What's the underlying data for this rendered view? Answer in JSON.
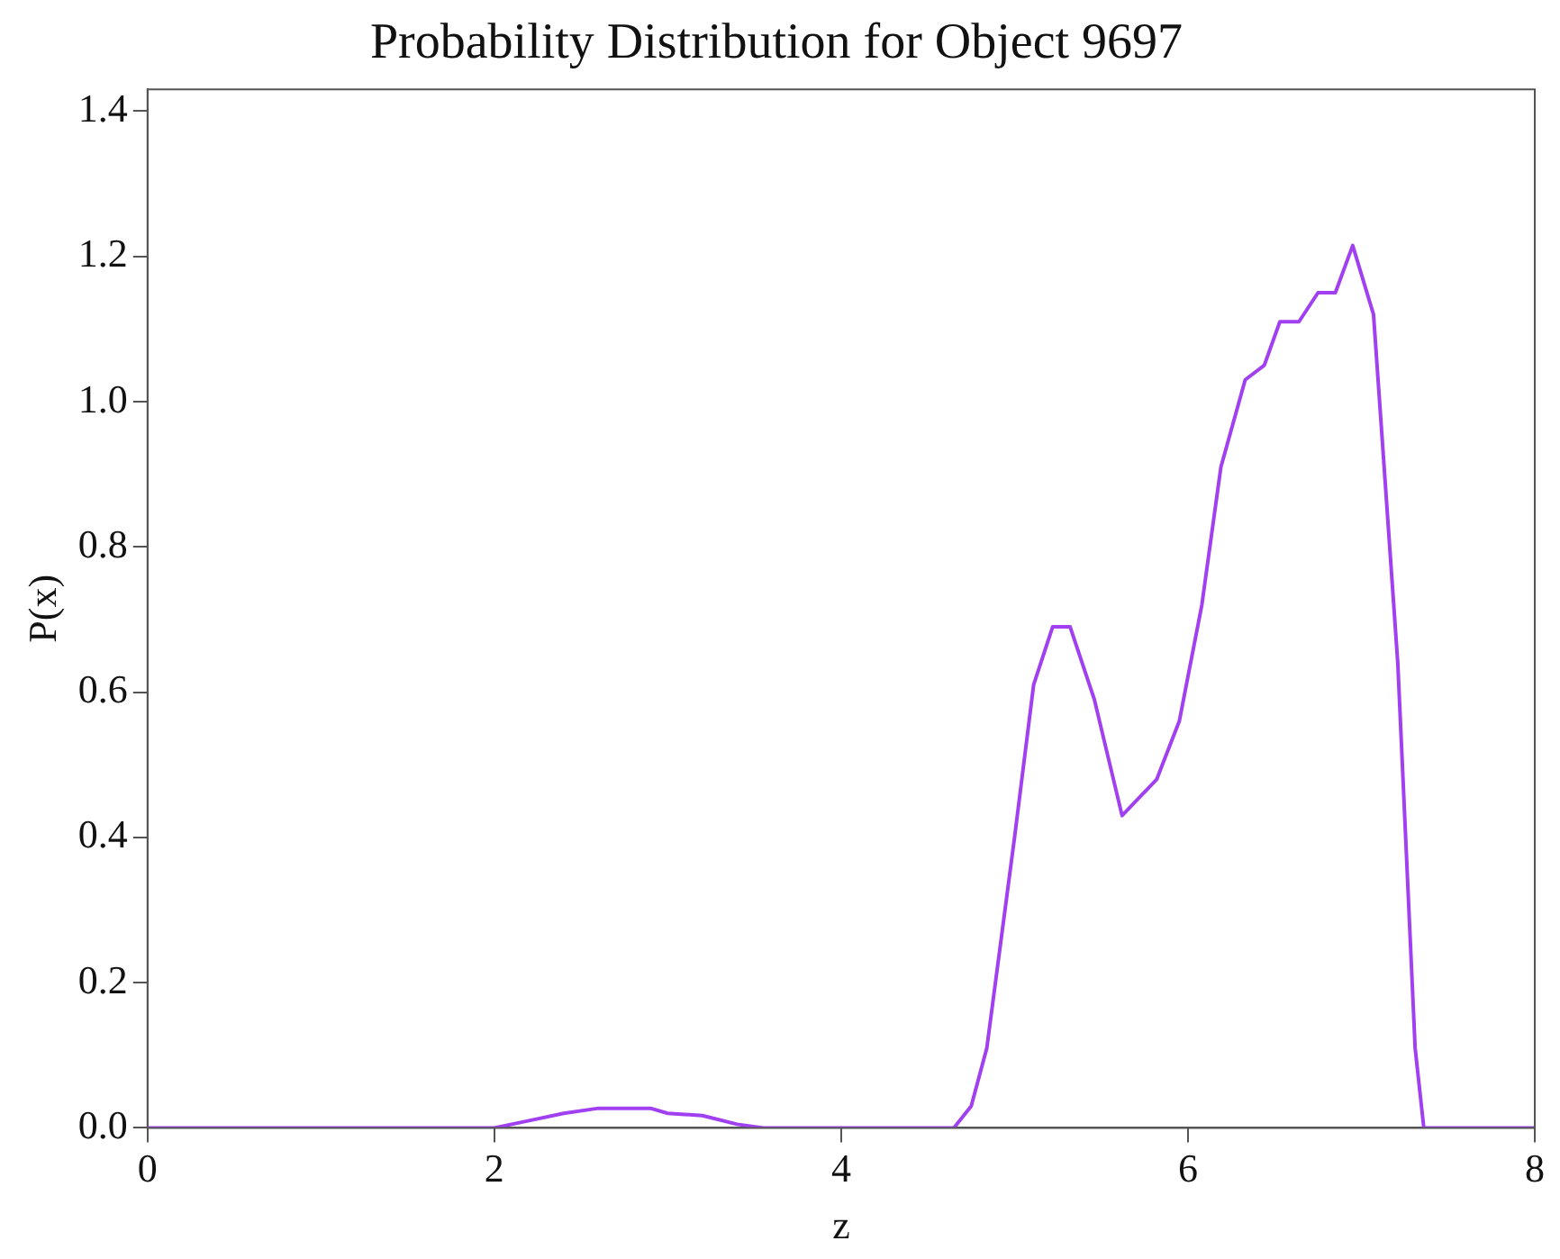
{
  "chart_data": {
    "type": "line",
    "title": "Probability Distribution for Object 9697",
    "xlabel": "z",
    "ylabel": "P(x)",
    "xlim": [
      0,
      8
    ],
    "xticks": [
      0,
      2,
      4,
      6,
      8
    ],
    "ylim": [
      0,
      1.43
    ],
    "yticks": [
      {
        "value": 0,
        "label": "0.0"
      },
      0.2,
      0.4,
      0.6,
      0.8,
      {
        "value": 1,
        "label": "1.0"
      },
      1.2,
      1.4
    ],
    "grid": false,
    "legend": false,
    "marker": "none",
    "line_style": "solid",
    "series": [
      {
        "color": "#a040f0",
        "x": [
          0,
          2.0,
          2.2,
          2.4,
          2.6,
          2.9,
          3.0,
          3.2,
          3.4,
          3.55,
          4.65,
          4.75,
          4.84,
          5.0,
          5.11,
          5.22,
          5.32,
          5.46,
          5.62,
          5.82,
          5.95,
          6.08,
          6.19,
          6.33,
          6.44,
          6.53,
          6.64,
          6.75,
          6.85,
          6.95,
          7.07,
          7.21,
          7.31,
          7.36,
          8
        ],
        "values": [
          0,
          0,
          0.01,
          0.02,
          0.027,
          0.027,
          0.02,
          0.017,
          0.005,
          0,
          0,
          0.03,
          0.11,
          0.4,
          0.61,
          0.69,
          0.69,
          0.59,
          0.43,
          0.48,
          0.56,
          0.72,
          0.91,
          1.03,
          1.05,
          1.11,
          1.11,
          1.15,
          1.15,
          1.215,
          1.12,
          0.64,
          0.11,
          0,
          0
        ]
      }
    ]
  }
}
